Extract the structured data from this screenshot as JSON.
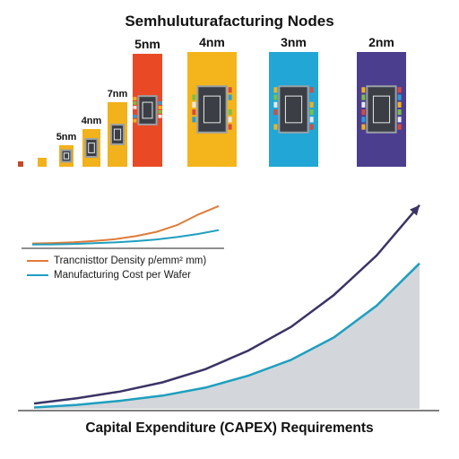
{
  "title": "Semhuluturafacturing Nodes",
  "bottom_title": "Capital Expenditure (CAPEX) Requirements",
  "colors": {
    "node_small": "#f2b21b",
    "node_5nm": "#e94a25",
    "node_4nm": "#f4b41c",
    "node_3nm": "#21a6d6",
    "node_2nm": "#4b3e8f",
    "density_line": "#e07b39",
    "cost_line": "#1e9fbf",
    "capex_line": "#3a3466",
    "capex_fill": "#d3d6da"
  },
  "nodes": [
    {
      "label": "",
      "size": 0.18,
      "color": "#c24a2a"
    },
    {
      "label": "",
      "size": 0.3,
      "color": "#f2b21b"
    },
    {
      "label": "5nm",
      "size": 0.45,
      "color": "#f2b21b"
    },
    {
      "label": "4nm",
      "size": 0.6,
      "color": "#f2b21b"
    },
    {
      "label": "7nm",
      "size": 0.8,
      "color": "#f2b21b"
    },
    {
      "label": "5nm",
      "size": 1.6,
      "color": "#e94a25"
    },
    {
      "label": "4nm",
      "size": 2.2,
      "color": "#f4b41c"
    },
    {
      "label": "3nm",
      "size": 2.2,
      "color": "#21a6d6"
    },
    {
      "label": "2nm",
      "size": 2.2,
      "color": "#4b3e8f"
    }
  ],
  "legend": {
    "density": "Trancnisttor Density p/emm² mm)",
    "cost": "Manufacturing Cost per Wafer"
  },
  "chart_data": [
    {
      "type": "line",
      "series": [
        {
          "name": "Trancnisttor Density p/emm² mm)",
          "values": [
            0.25,
            0.3,
            0.4,
            0.55,
            0.75,
            1.1,
            1.6,
            2.4,
            3.6,
            4.6
          ]
        },
        {
          "name": "Manufacturing Cost per Wafer",
          "values": [
            0.12,
            0.15,
            0.2,
            0.28,
            0.38,
            0.52,
            0.72,
            1.0,
            1.35,
            1.8
          ]
        }
      ],
      "x": [
        0,
        1,
        2,
        3,
        4,
        5,
        6,
        7,
        8,
        9
      ],
      "ylim": [
        0,
        5
      ]
    },
    {
      "type": "area",
      "title": "Capital Expenditure (CAPEX) Requirements",
      "x": [
        0,
        1,
        2,
        3,
        4,
        5,
        6,
        7,
        8,
        9
      ],
      "series": [
        {
          "name": "upper",
          "values": [
            2,
            4,
            6.5,
            10,
            15,
            22,
            31,
            43,
            58,
            77
          ]
        },
        {
          "name": "area",
          "values": [
            0.5,
            1.5,
            3,
            5,
            8,
            12.5,
            18.5,
            27,
            39,
            55
          ]
        }
      ],
      "ylim": [
        0,
        80
      ]
    }
  ]
}
